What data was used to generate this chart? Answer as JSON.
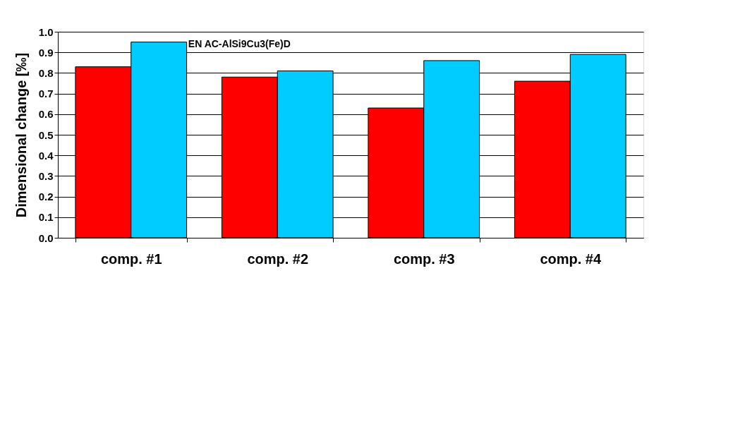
{
  "chart_data": {
    "type": "bar",
    "ylabel": "Dimensional change  [‰]",
    "annotations": [
      "EN AC-AlSi9Cu3(Fe)D"
    ],
    "categories": [
      "comp. #1",
      "comp. #2",
      "comp. #3",
      "comp. #4"
    ],
    "series": [
      {
        "color": "#ff0000",
        "values": [
          0.83,
          0.78,
          0.63,
          0.76
        ]
      },
      {
        "color": "#00ccff",
        "values": [
          0.95,
          0.81,
          0.86,
          0.89
        ]
      }
    ],
    "ylim": [
      0,
      1.0
    ],
    "yticks": [
      {
        "value": 0,
        "label": "0.0"
      },
      {
        "value": 0.1,
        "label": "0.1"
      },
      {
        "value": 0.2,
        "label": "0.2"
      },
      {
        "value": 0.3,
        "label": "0.3"
      },
      {
        "value": 0.4,
        "label": "0.4"
      },
      {
        "value": 0.5,
        "label": "0.5"
      },
      {
        "value": 0.6,
        "label": "0.6"
      },
      {
        "value": 0.7,
        "label": "0.7"
      },
      {
        "value": 0.8,
        "label": "0.8"
      },
      {
        "value": 0.9,
        "label": "0.9"
      },
      {
        "value": 1.0,
        "label": "1.0"
      }
    ],
    "grid": "y",
    "legend": false
  }
}
